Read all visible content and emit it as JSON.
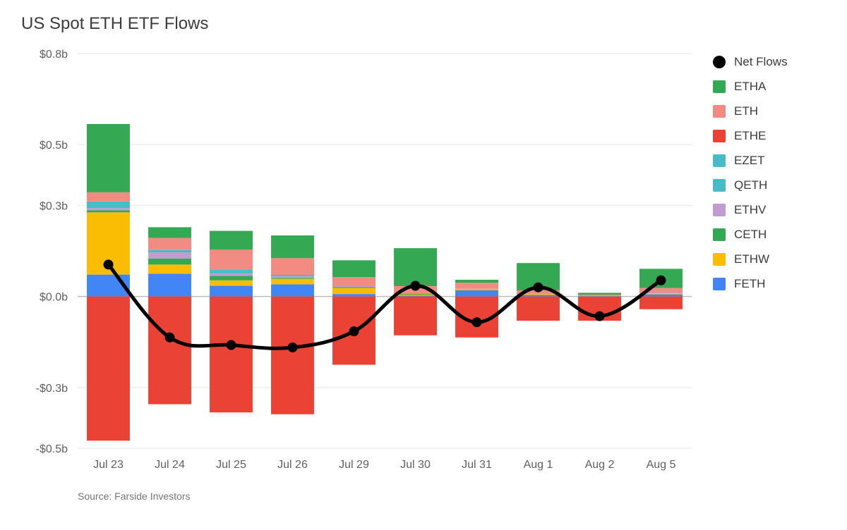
{
  "title": "US Spot ETH ETF Flows",
  "source": "Source: Farside Investors",
  "chart": {
    "type": "stacked-bar-with-line",
    "background_color": "#ffffff",
    "grid_color": "#e5e5e5",
    "zero_line_color": "#bdbdbd",
    "title_fontsize": 24,
    "axis_fontsize": 16,
    "y": {
      "min": -0.5,
      "max": 0.8,
      "ticks": [
        -0.5,
        -0.3,
        0.0,
        0.3,
        0.5,
        0.8
      ],
      "labels": [
        "-$0.5b",
        "-$0.3b",
        "$0.0b",
        "$0.3b",
        "$0.5b",
        "$0.8b"
      ]
    },
    "categories": [
      "Jul 23",
      "Jul 24",
      "Jul 25",
      "Jul 26",
      "Jul 29",
      "Jul 30",
      "Jul 31",
      "Aug 1",
      "Aug 2",
      "Aug 5"
    ],
    "series_order": [
      "ETHA",
      "ETH",
      "ETHE",
      "EZET",
      "QETH",
      "ETHV",
      "CETH",
      "ETHW",
      "FETH"
    ],
    "colors": {
      "ETHA": "#34a853",
      "ETH": "#f28b82",
      "ETHE": "#ea4335",
      "EZET": "#46bdc6",
      "QETH": "#46bdc6",
      "ETHV": "#c39bd3",
      "CETH": "#34a853",
      "ETHW": "#fbbc04",
      "FETH": "#4285f4",
      "NetFlows": "#000000"
    },
    "bar_width": 0.7,
    "line_width": 5,
    "marker_radius": 7,
    "data": {
      "FETH": [
        0.072,
        0.075,
        0.035,
        0.04,
        0.008,
        0.003,
        0.02,
        0.005,
        0.0,
        0.007
      ],
      "ETHW": [
        0.205,
        0.03,
        0.018,
        0.018,
        0.02,
        0.003,
        0.005,
        0.003,
        0.0,
        0.003
      ],
      "CETH": [
        0.007,
        0.02,
        0.015,
        0.003,
        0.003,
        0.003,
        0.0,
        0.0,
        0.0,
        0.0
      ],
      "ETHV": [
        0.007,
        0.02,
        0.008,
        0.005,
        0.003,
        0.0,
        0.0,
        0.0,
        0.0,
        0.003
      ],
      "QETH": [
        0.01,
        0.008,
        0.008,
        0.005,
        0.0,
        0.0,
        0.0,
        0.0,
        0.0,
        0.0
      ],
      "EZET": [
        0.012,
        0.0,
        0.005,
        0.0,
        0.0,
        0.0,
        0.0,
        0.0,
        0.003,
        0.0
      ],
      "ETH": [
        0.03,
        0.04,
        0.065,
        0.055,
        0.03,
        0.025,
        0.02,
        0.012,
        0.003,
        0.015
      ],
      "ETHA": [
        0.225,
        0.035,
        0.062,
        0.075,
        0.055,
        0.125,
        0.01,
        0.09,
        0.006,
        0.063
      ],
      "ETHE": [
        -0.475,
        -0.355,
        -0.382,
        -0.388,
        -0.225,
        -0.128,
        -0.135,
        -0.08,
        -0.08,
        -0.042
      ],
      "NetFlows": [
        0.105,
        -0.135,
        -0.16,
        -0.168,
        -0.115,
        0.035,
        -0.085,
        0.03,
        -0.065,
        0.053
      ]
    },
    "legend_items": [
      {
        "key": "NetFlows",
        "label": "Net Flows",
        "type": "dot"
      },
      {
        "key": "ETHA",
        "label": "ETHA",
        "type": "box"
      },
      {
        "key": "ETH",
        "label": "ETH",
        "type": "box"
      },
      {
        "key": "ETHE",
        "label": "ETHE",
        "type": "box"
      },
      {
        "key": "EZET",
        "label": "EZET",
        "type": "box"
      },
      {
        "key": "QETH",
        "label": "QETH",
        "type": "box"
      },
      {
        "key": "ETHV",
        "label": "ETHV",
        "type": "box"
      },
      {
        "key": "CETH",
        "label": "CETH",
        "type": "box"
      },
      {
        "key": "ETHW",
        "label": "ETHW",
        "type": "box"
      },
      {
        "key": "FETH",
        "label": "FETH",
        "type": "box"
      }
    ]
  }
}
